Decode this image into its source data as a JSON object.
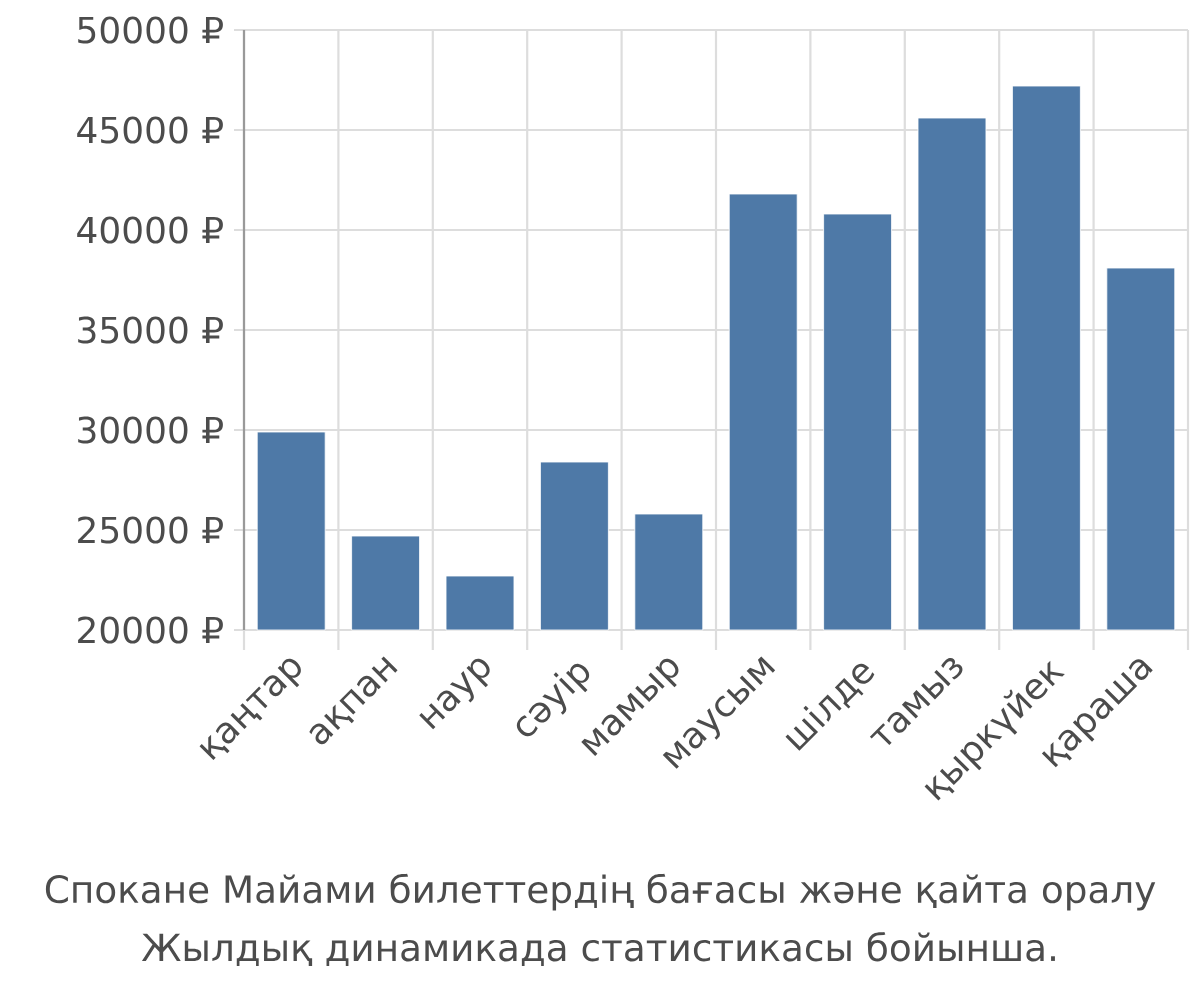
{
  "chart_data": {
    "type": "bar",
    "categories": [
      "қаңтар",
      "ақпан",
      "наур",
      "сәуір",
      "мамыр",
      "маусым",
      "шілде",
      "тамыз",
      "қыркүйек",
      "қараша"
    ],
    "values": [
      29900,
      24700,
      22700,
      28400,
      25800,
      41800,
      40800,
      45600,
      47200,
      38100
    ],
    "color": "#4e79a7",
    "ylim": [
      20000,
      50000
    ],
    "yticks": [
      {
        "value": 20000,
        "label": "20000 ₽"
      },
      {
        "value": 25000,
        "label": "25000 ₽"
      },
      {
        "value": 30000,
        "label": "30000 ₽"
      },
      {
        "value": 35000,
        "label": "35000 ₽"
      },
      {
        "value": 40000,
        "label": "40000 ₽"
      },
      {
        "value": 45000,
        "label": "45000 ₽"
      },
      {
        "value": 50000,
        "label": "50000 ₽"
      }
    ],
    "grid": true,
    "annotations": [
      "Спокане Майами билеттердің бағасы және қайта оралу",
      "Жылдық динамикада статистикасы бойынша."
    ]
  }
}
